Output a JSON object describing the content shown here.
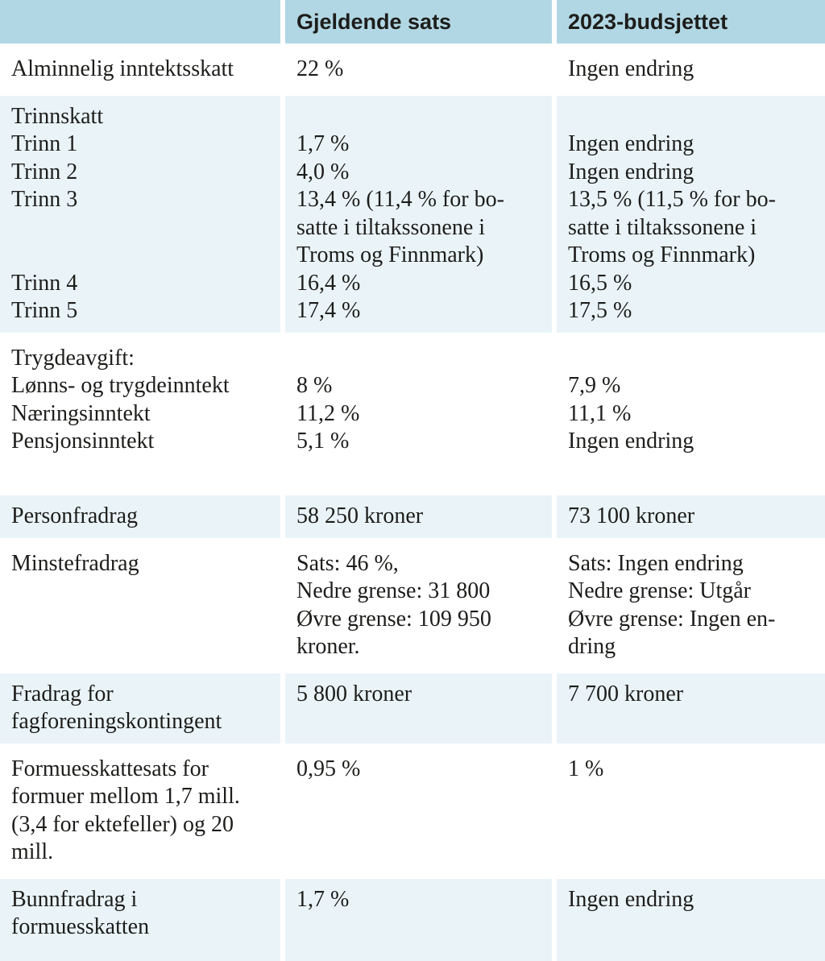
{
  "table": {
    "colors": {
      "header_bg": "#b2d7e4",
      "row_shade_bg": "#eaf4f8",
      "row_plain_bg": "#ffffff",
      "text": "#1d1d1b"
    },
    "header": {
      "cells": [
        "",
        "Gjeldende sats",
        "2023-budsjettet"
      ]
    },
    "rows": [
      {
        "shade": false,
        "cells": [
          [
            "Alminnelig inntektsskatt"
          ],
          [
            "22 %"
          ],
          [
            "Ingen endring"
          ]
        ]
      },
      {
        "shade": true,
        "cells": [
          [
            "Trinnskatt",
            "Trinn 1",
            "Trinn 2",
            "Trinn 3",
            "",
            "",
            "Trinn 4",
            "Trinn 5"
          ],
          [
            "",
            "1,7 %",
            "4,0 %",
            "13,4 % (11,4 % for bo-",
            "satte i tiltakssonene i",
            "Troms og Finnmark)",
            "16,4 %",
            "17,4 %"
          ],
          [
            "",
            "Ingen endring",
            "Ingen endring",
            "13,5 % (11,5 % for bo-",
            "satte i tiltakssonene i",
            "Troms og Finnmark)",
            "16,5 %",
            "17,5 %"
          ]
        ]
      },
      {
        "shade": false,
        "cells": [
          [
            "Trygdeavgift:",
            "Lønns- og trygdeinntekt",
            "Næringsinntekt",
            "Pensjonsinntekt",
            ""
          ],
          [
            "",
            "8 %",
            "11,2 %",
            "5,1 %",
            ""
          ],
          [
            "",
            "7,9 %",
            "11,1 %",
            "Ingen endring",
            ""
          ]
        ]
      },
      {
        "shade": true,
        "cells": [
          [
            "Personfradrag"
          ],
          [
            "58 250 kroner"
          ],
          [
            "73 100 kroner"
          ]
        ]
      },
      {
        "shade": false,
        "cells": [
          [
            "Minstefradrag"
          ],
          [
            "Sats: 46 %,",
            "Nedre grense: 31 800",
            "Øvre grense: 109 950",
            "kroner."
          ],
          [
            "Sats: Ingen endring",
            "Nedre grense: Utgår",
            "Øvre grense: Ingen en-",
            "dring"
          ]
        ]
      },
      {
        "shade": true,
        "cells": [
          [
            "Fradrag for",
            "fagforeningskontingent"
          ],
          [
            "5 800 kroner"
          ],
          [
            "7 700 kroner"
          ]
        ]
      },
      {
        "shade": false,
        "cells": [
          [
            "Formuesskattesats for",
            "formuer mellom 1,7 mill.",
            "(3,4 for ektefeller) og 20",
            "mill."
          ],
          [
            "0,95 %"
          ],
          [
            "1 %"
          ]
        ]
      },
      {
        "shade": true,
        "cells": [
          [
            "Bunnfradrag i",
            "formuesskatten"
          ],
          [
            "1,7 %"
          ],
          [
            "Ingen endring"
          ]
        ]
      }
    ]
  },
  "chart_data": {
    "type": "table",
    "columns": [
      "",
      "Gjeldende sats",
      "2023-budsjettet"
    ],
    "rows": [
      [
        "Alminnelig inntektsskatt",
        "22 %",
        "Ingen endring"
      ],
      [
        "Trinnskatt Trinn 1",
        "1,7 %",
        "Ingen endring"
      ],
      [
        "Trinnskatt Trinn 2",
        "4,0 %",
        "Ingen endring"
      ],
      [
        "Trinnskatt Trinn 3",
        "13,4 % (11,4 % for bosatte i tiltakssonene i Troms og Finnmark)",
        "13,5 % (11,5 % for bosatte i tiltakssonene i Troms og Finnmark)"
      ],
      [
        "Trinnskatt Trinn 4",
        "16,4 %",
        "16,5 %"
      ],
      [
        "Trinnskatt Trinn 5",
        "17,4 %",
        "17,5 %"
      ],
      [
        "Trygdeavgift: Lønns- og trygdeinntekt",
        "8 %",
        "7,9 %"
      ],
      [
        "Trygdeavgift: Næringsinntekt",
        "11,2 %",
        "11,1 %"
      ],
      [
        "Trygdeavgift: Pensjonsinntekt",
        "5,1 %",
        "Ingen endring"
      ],
      [
        "Personfradrag",
        "58 250 kroner",
        "73 100 kroner"
      ],
      [
        "Minstefradrag",
        "Sats: 46 %, Nedre grense: 31 800 Øvre grense: 109 950 kroner.",
        "Sats: Ingen endring Nedre grense: Utgår Øvre grense: Ingen endring"
      ],
      [
        "Fradrag for fagforeningskontingent",
        "5 800 kroner",
        "7 700 kroner"
      ],
      [
        "Formuesskattesats for formuer mellom 1,7 mill. (3,4 for ektefeller) og 20 mill.",
        "0,95 %",
        "1 %"
      ],
      [
        "Bunnfradrag i formuesskatten",
        "1,7 %",
        "Ingen endring"
      ]
    ]
  }
}
